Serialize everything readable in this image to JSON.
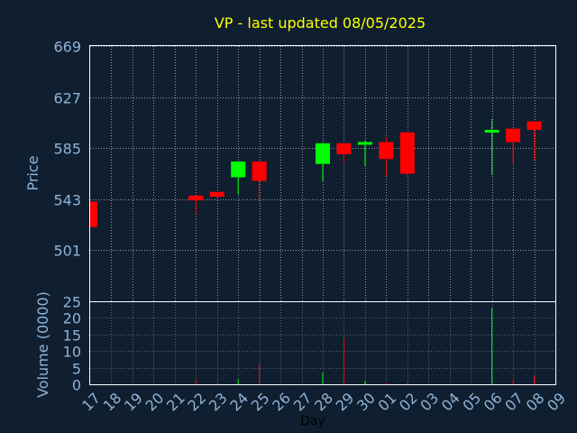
{
  "title": "VP - last updated 08/05/2025",
  "chart_data": [
    {
      "type": "candlestick",
      "ylabel": "Price",
      "ylim": [
        459,
        669
      ],
      "yticks": [
        669,
        627,
        585,
        543,
        501
      ],
      "grid": true,
      "up_color": "#00ff00",
      "down_color": "#ff0000",
      "x": [
        "17",
        "18",
        "19",
        "20",
        "21",
        "22",
        "23",
        "24",
        "25",
        "26",
        "27",
        "28",
        "29",
        "30",
        "01",
        "02",
        "03",
        "04",
        "05",
        "06",
        "07",
        "08",
        "09"
      ],
      "candles": [
        {
          "x": "17",
          "open": 541,
          "high": 541,
          "low": 520,
          "close": 520
        },
        {
          "x": "22",
          "open": 546,
          "high": 546,
          "low": 531,
          "close": 542
        },
        {
          "x": "23",
          "open": 549,
          "high": 549,
          "low": 544,
          "close": 545
        },
        {
          "x": "24",
          "open": 561,
          "high": 574,
          "low": 547,
          "close": 574
        },
        {
          "x": "25",
          "open": 574,
          "high": 574,
          "low": 541,
          "close": 558
        },
        {
          "x": "28",
          "open": 572,
          "high": 589,
          "low": 558,
          "close": 589
        },
        {
          "x": "29",
          "open": 589,
          "high": 589,
          "low": 572,
          "close": 580
        },
        {
          "x": "30",
          "open": 588,
          "high": 591,
          "low": 570,
          "close": 590
        },
        {
          "x": "01",
          "open": 590,
          "high": 594,
          "low": 562,
          "close": 576
        },
        {
          "x": "02",
          "open": 598,
          "high": 598,
          "low": 563,
          "close": 564
        },
        {
          "x": "06",
          "open": 598,
          "high": 609,
          "low": 563,
          "close": 600
        },
        {
          "x": "07",
          "open": 601,
          "high": 601,
          "low": 572,
          "close": 590
        },
        {
          "x": "08",
          "open": 607,
          "high": 607,
          "low": 575,
          "close": 600
        }
      ]
    },
    {
      "type": "bar",
      "ylabel": "Volume (0000)",
      "xlabel": "Day",
      "ylim": [
        0,
        25
      ],
      "yticks": [
        25,
        20,
        15,
        10,
        5,
        0
      ],
      "categories": [
        "17",
        "18",
        "19",
        "20",
        "21",
        "22",
        "23",
        "24",
        "25",
        "26",
        "27",
        "28",
        "29",
        "30",
        "01",
        "02",
        "03",
        "04",
        "05",
        "06",
        "07",
        "08",
        "09"
      ],
      "values": [
        0,
        0,
        0,
        0,
        0,
        1.5,
        0.3,
        1.5,
        6.5,
        0,
        0,
        3.5,
        14,
        1,
        0.5,
        0.5,
        0,
        0,
        0,
        23,
        1.5,
        2.5,
        0
      ],
      "colors": [
        "#ff0000",
        "#ff0000",
        "#ff0000",
        "#ff0000",
        "#ff0000",
        "#ff0000",
        "#ff0000",
        "#00ff00",
        "#ff0000",
        "#ff0000",
        "#ff0000",
        "#00ff00",
        "#ff0000",
        "#00ff00",
        "#ff0000",
        "#ff0000",
        "#ff0000",
        "#ff0000",
        "#ff0000",
        "#00ff00",
        "#ff0000",
        "#ff0000",
        "#ff0000"
      ]
    }
  ]
}
